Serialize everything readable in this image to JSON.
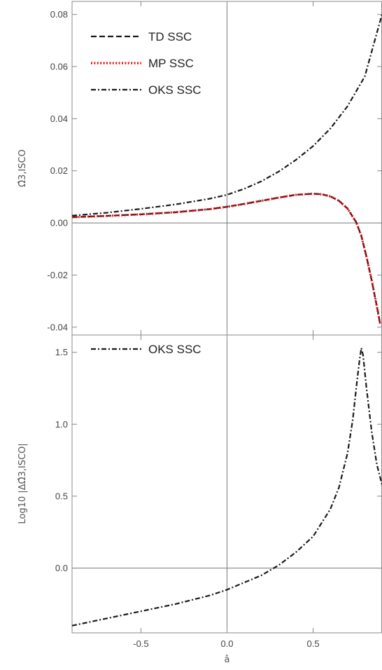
{
  "chart_data": [
    {
      "type": "line",
      "panel": "top",
      "xlim": [
        -0.9,
        0.9
      ],
      "ylim": [
        -0.043,
        0.085
      ],
      "ylabel": "Ω̂3,ISCO",
      "xlabel": "",
      "yticks": [
        {
          "v": 0.08,
          "label": "0.08"
        },
        {
          "v": 0.06,
          "label": "0.06"
        },
        {
          "v": 0.04,
          "label": "0.04"
        },
        {
          "v": 0.02,
          "label": "0.02"
        },
        {
          "v": 0.0,
          "label": "0.00"
        },
        {
          "v": -0.02,
          "label": "-0.02"
        },
        {
          "v": -0.04,
          "label": "-0.04"
        }
      ],
      "grid": false,
      "legend_position": "top-left",
      "series": [
        {
          "name": "TD SSC",
          "color": "#1a1a1a",
          "style": "dashed",
          "x": [
            -0.9,
            -0.7,
            -0.5,
            -0.3,
            -0.1,
            0.0,
            0.1,
            0.2,
            0.3,
            0.4,
            0.5,
            0.55,
            0.6,
            0.65,
            0.7,
            0.75,
            0.78,
            0.81,
            0.84,
            0.87,
            0.89
          ],
          "y": [
            0.0022,
            0.0027,
            0.0033,
            0.0041,
            0.0053,
            0.0062,
            0.0073,
            0.0085,
            0.0097,
            0.0108,
            0.0112,
            0.011,
            0.0102,
            0.0085,
            0.0055,
            0.0003,
            -0.005,
            -0.013,
            -0.022,
            -0.032,
            -0.039
          ]
        },
        {
          "name": "MP SSC",
          "color": "#e8141b",
          "style": "dotted",
          "x": [
            -0.9,
            -0.7,
            -0.5,
            -0.3,
            -0.1,
            0.0,
            0.1,
            0.2,
            0.3,
            0.4,
            0.5,
            0.55,
            0.6,
            0.65,
            0.7,
            0.75,
            0.78,
            0.81,
            0.84,
            0.87,
            0.89
          ],
          "y": [
            0.0022,
            0.0027,
            0.0033,
            0.0041,
            0.0053,
            0.0062,
            0.0073,
            0.0085,
            0.0097,
            0.0108,
            0.0112,
            0.011,
            0.0102,
            0.0085,
            0.0055,
            0.0003,
            -0.005,
            -0.013,
            -0.022,
            -0.032,
            -0.039
          ]
        },
        {
          "name": "OKS SSC",
          "color": "#1a1a1a",
          "style": "dashdot",
          "x": [
            -0.9,
            -0.7,
            -0.5,
            -0.3,
            -0.1,
            0.0,
            0.1,
            0.2,
            0.3,
            0.4,
            0.5,
            0.6,
            0.7,
            0.8,
            0.9
          ],
          "y": [
            0.0028,
            0.0039,
            0.0054,
            0.0071,
            0.0093,
            0.0108,
            0.0131,
            0.016,
            0.0197,
            0.0242,
            0.0295,
            0.0362,
            0.0448,
            0.0562,
            0.08
          ]
        }
      ]
    },
    {
      "type": "line",
      "panel": "bottom",
      "xlim": [
        -0.9,
        0.9
      ],
      "ylim": [
        -0.45,
        1.62
      ],
      "xlabel": "â",
      "ylabel": "Log10 |ΔΩ̂3,ISCO|",
      "xticks": [
        {
          "v": -0.5,
          "label": "-0.5"
        },
        {
          "v": 0.0,
          "label": "0.0"
        },
        {
          "v": 0.5,
          "label": "0.5"
        }
      ],
      "yticks": [
        {
          "v": 1.5,
          "label": "1.5"
        },
        {
          "v": 1.0,
          "label": "1.0"
        },
        {
          "v": 0.5,
          "label": "0.5"
        },
        {
          "v": 0.0,
          "label": "0.0"
        }
      ],
      "grid": false,
      "legend_position": "top-left",
      "series": [
        {
          "name": "OKS SSC",
          "color": "#1a1a1a",
          "style": "dashdot",
          "x": [
            -0.9,
            -0.7,
            -0.5,
            -0.3,
            -0.1,
            0.0,
            0.1,
            0.2,
            0.3,
            0.4,
            0.5,
            0.6,
            0.65,
            0.7,
            0.73,
            0.755,
            0.77,
            0.78,
            0.79,
            0.81,
            0.84,
            0.87,
            0.9
          ],
          "y": [
            -0.4,
            -0.35,
            -0.3,
            -0.25,
            -0.19,
            -0.15,
            -0.1,
            -0.05,
            0.02,
            0.11,
            0.22,
            0.41,
            0.56,
            0.8,
            1.03,
            1.3,
            1.45,
            1.53,
            1.48,
            1.25,
            0.95,
            0.72,
            0.58
          ]
        }
      ]
    }
  ]
}
